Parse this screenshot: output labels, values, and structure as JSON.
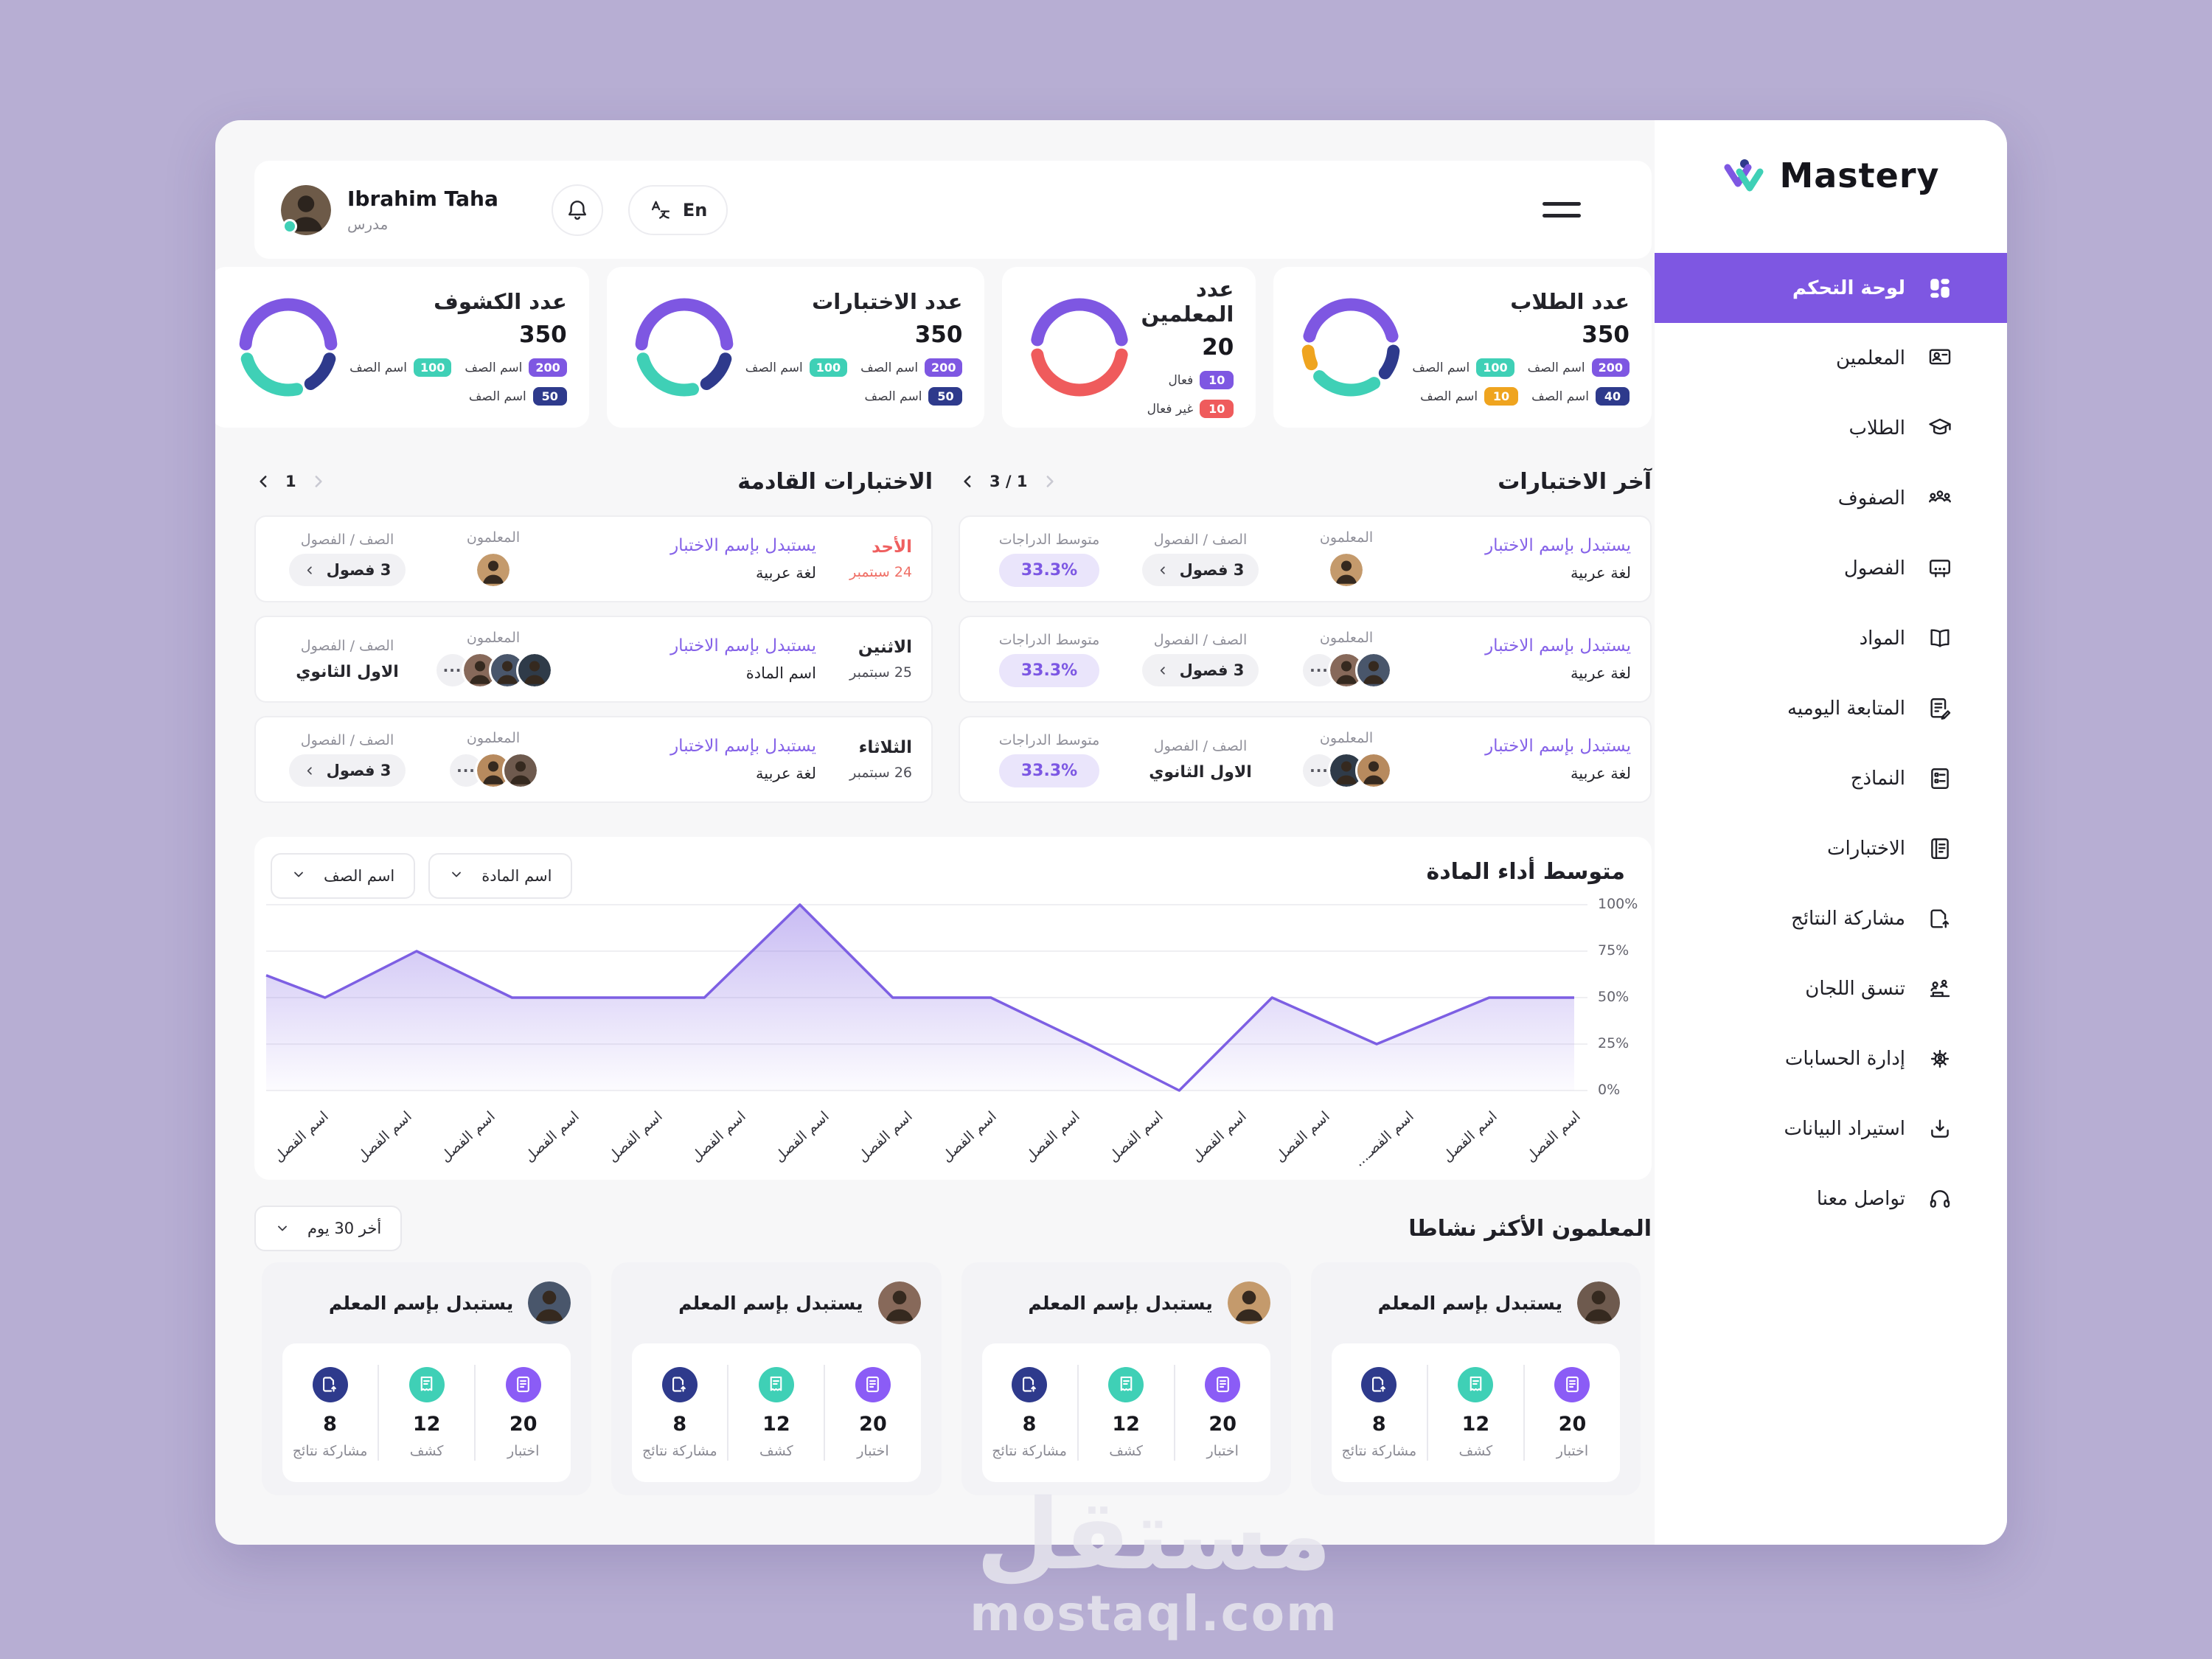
{
  "watermark": {
    "title": "مستقل",
    "domain": "mostaql.com"
  },
  "header": {
    "user_name": "Ibrahim Taha",
    "user_role": "مدرس",
    "language": "En"
  },
  "sidebar": {
    "brand": "Mastery",
    "items": [
      {
        "label": "لوحة التحكم",
        "icon": "dashboard",
        "active": true
      },
      {
        "label": "المعلمين",
        "icon": "teachers",
        "active": false
      },
      {
        "label": "الطلاب",
        "icon": "students",
        "active": false
      },
      {
        "label": "الصفوف",
        "icon": "grades",
        "active": false
      },
      {
        "label": "الفصول",
        "icon": "classes",
        "active": false
      },
      {
        "label": "المواد",
        "icon": "subjects",
        "active": false
      },
      {
        "label": "المتابعة اليوميه",
        "icon": "daily",
        "active": false
      },
      {
        "label": "النماذج",
        "icon": "forms",
        "active": false
      },
      {
        "label": "الاختبارات",
        "icon": "exams",
        "active": false
      },
      {
        "label": "مشاركة النتائج",
        "icon": "share",
        "active": false
      },
      {
        "label": "تنسق اللجان",
        "icon": "committees",
        "active": false
      },
      {
        "label": "إدارة الحسابات",
        "icon": "accounts",
        "active": false
      },
      {
        "label": "استيراد البيانات",
        "icon": "import",
        "active": false
      },
      {
        "label": "تواصل معنا",
        "icon": "contact",
        "active": false
      }
    ]
  },
  "stat_cards": [
    {
      "title": "عدد الطلاب",
      "value": "350",
      "segments": [
        {
          "value": 200,
          "color": "#7e57e2"
        },
        {
          "value": 40,
          "color": "#2e3a8c"
        },
        {
          "value": 100,
          "color": "#3fd0b6"
        },
        {
          "value": 10,
          "color": "#efa41f"
        }
      ],
      "legend_rows": [
        [
          {
            "value": "200",
            "color": "#7e57e2",
            "label": "اسم الصف"
          },
          {
            "value": "100",
            "color": "#3fd0b6",
            "label": "اسم الصف"
          }
        ],
        [
          {
            "value": "40",
            "color": "#2e3a8c",
            "label": "اسم الصف"
          },
          {
            "value": "10",
            "color": "#efa41f",
            "label": "اسم الصف"
          }
        ]
      ]
    },
    {
      "title": "عدد المعلمين",
      "value": "20",
      "segments": [
        {
          "value": 10,
          "color": "#7e57e2"
        },
        {
          "value": 10,
          "color": "#ef5b5c"
        }
      ],
      "legend_rows": [
        [
          {
            "value": "10",
            "color": "#7e57e2",
            "label": "فعال"
          }
        ],
        [
          {
            "value": "10",
            "color": "#ef5b5c",
            "label": "غير فعال"
          }
        ]
      ]
    },
    {
      "title": "عدد الاختبارات",
      "value": "350",
      "segments": [
        {
          "value": 200,
          "color": "#7e57e2"
        },
        {
          "value": 50,
          "color": "#2e3a8c"
        },
        {
          "value": 100,
          "color": "#3fd0b6"
        }
      ],
      "legend_rows": [
        [
          {
            "value": "200",
            "color": "#7e57e2",
            "label": "اسم الصف"
          },
          {
            "value": "100",
            "color": "#3fd0b6",
            "label": "اسم الصف"
          }
        ],
        [
          {
            "value": "50",
            "color": "#2e3a8c",
            "label": "اسم الصف"
          }
        ]
      ]
    },
    {
      "title": "عدد الكشوف",
      "value": "350",
      "segments": [
        {
          "value": 200,
          "color": "#7e57e2"
        },
        {
          "value": 50,
          "color": "#2e3a8c"
        },
        {
          "value": 100,
          "color": "#3fd0b6"
        }
      ],
      "legend_rows": [
        [
          {
            "value": "200",
            "color": "#7e57e2",
            "label": "اسم الصف"
          },
          {
            "value": "100",
            "color": "#3fd0b6",
            "label": "اسم الصف"
          }
        ],
        [
          {
            "value": "50",
            "color": "#2e3a8c",
            "label": "اسم الصف"
          }
        ]
      ]
    }
  ],
  "latest": {
    "title": "آخر الاختبارات",
    "page": "3 / 1",
    "teachers_label": "المعلمون",
    "class_label": "الصف / الفصول",
    "score_label": "متوسط الدراجات",
    "rows": [
      {
        "exam": "يستبدل بإسم الاختبار",
        "subject": "لغة عربية",
        "avatars": 1,
        "more": false,
        "class_pill": true,
        "class_text": "3 فصول",
        "score": "33.3%"
      },
      {
        "exam": "يستبدل بإسم الاختبار",
        "subject": "لغة عربية",
        "avatars": 2,
        "more": true,
        "class_pill": true,
        "class_text": "3 فصول",
        "score": "33.3%"
      },
      {
        "exam": "يستبدل بإسم الاختبار",
        "subject": "لغة عربية",
        "avatars": 2,
        "more": true,
        "class_pill": false,
        "class_text": "الاول الثانوي",
        "score": "33.3%"
      }
    ]
  },
  "upcoming": {
    "title": "الاختبارات القادمة",
    "page": "1",
    "teachers_label": "المعلمون",
    "class_label": "الصف / الفصول",
    "rows": [
      {
        "day": "الأحد",
        "date": "24 سبتمبر",
        "accent": true,
        "exam": "يستبدل بإسم الاختبار",
        "subject": "لغة عربية",
        "avatars": 1,
        "more": false,
        "class_pill": true,
        "class_text": "3 فصول"
      },
      {
        "day": "الاثنين",
        "date": "25 سبتمبر",
        "accent": false,
        "exam": "يستبدل بإسم الاختبار",
        "subject": "اسم المادة",
        "avatars": 3,
        "more": true,
        "class_pill": false,
        "class_text": "الاول الثانوي"
      },
      {
        "day": "الثلاثاء",
        "date": "26 سبتمبر",
        "accent": false,
        "exam": "يستبدل بإسم الاختبار",
        "subject": "لغة عربية",
        "avatars": 2,
        "more": true,
        "class_pill": true,
        "class_text": "3 فصول"
      }
    ]
  },
  "performance": {
    "filters": [
      "اسم الصف",
      "اسم المادة"
    ],
    "chart_data": {
      "type": "area",
      "title": "متوسط أداء المادة",
      "categories": [
        "اسم الفصل",
        "اسم الفصل",
        "اسم الفصل",
        "اسم الفصل",
        "اسم الفصل",
        "اسم الفصل",
        "اسم الفصل",
        "اسم الفصل",
        "اسم الفصل",
        "اسم الفصل",
        "اسم الفصل",
        "اسم الفصل",
        "اسم الفصل",
        "اسم الفصـ...",
        "اسم الفصل",
        "اسم الفصل"
      ],
      "points": [
        [
          0,
          62
        ],
        [
          0.045,
          50
        ],
        [
          0.115,
          75
        ],
        [
          0.188,
          50
        ],
        [
          0.335,
          50
        ],
        [
          0.408,
          100
        ],
        [
          0.479,
          50
        ],
        [
          0.554,
          50
        ],
        [
          0.628,
          25
        ],
        [
          0.698,
          0
        ],
        [
          0.769,
          50
        ],
        [
          0.849,
          25
        ],
        [
          0.935,
          50
        ],
        [
          1,
          50
        ]
      ],
      "yticks": [
        "100%",
        "75%",
        "50%",
        "25%",
        "0%"
      ],
      "ylim": [
        0,
        100
      ],
      "grid": true,
      "line_color": "#7d5fe3"
    }
  },
  "top_teachers": {
    "title": "المعلمون الأكثر نشاطا",
    "filter": "أخر 30 يوم",
    "cards": [
      {
        "name": "يستبدل بإسم المعلم",
        "stats": [
          {
            "value": "20",
            "label": "اختبار",
            "color": "#8b5cf6",
            "icon": "exam_stat"
          },
          {
            "value": "12",
            "label": "كشف",
            "color": "#3fd0b6",
            "icon": "sheet_stat"
          },
          {
            "value": "8",
            "label": "مشاركة نتائج",
            "color": "#2e3a8c",
            "icon": "share_stat"
          }
        ]
      },
      {
        "name": "يستبدل بإسم المعلم",
        "stats": [
          {
            "value": "20",
            "label": "اختبار",
            "color": "#8b5cf6",
            "icon": "exam_stat"
          },
          {
            "value": "12",
            "label": "كشف",
            "color": "#3fd0b6",
            "icon": "sheet_stat"
          },
          {
            "value": "8",
            "label": "مشاركة نتائج",
            "color": "#2e3a8c",
            "icon": "share_stat"
          }
        ]
      },
      {
        "name": "يستبدل بإسم المعلم",
        "stats": [
          {
            "value": "20",
            "label": "اختبار",
            "color": "#8b5cf6",
            "icon": "exam_stat"
          },
          {
            "value": "12",
            "label": "كشف",
            "color": "#3fd0b6",
            "icon": "sheet_stat"
          },
          {
            "value": "8",
            "label": "مشاركة نتائج",
            "color": "#2e3a8c",
            "icon": "share_stat"
          }
        ]
      },
      {
        "name": "يستبدل بإسم المعلم",
        "stats": [
          {
            "value": "20",
            "label": "اختبار",
            "color": "#8b5cf6",
            "icon": "exam_stat"
          },
          {
            "value": "12",
            "label": "كشف",
            "color": "#3fd0b6",
            "icon": "sheet_stat"
          },
          {
            "value": "8",
            "label": "مشاركة نتائج",
            "color": "#2e3a8c",
            "icon": "share_stat"
          }
        ]
      }
    ]
  }
}
